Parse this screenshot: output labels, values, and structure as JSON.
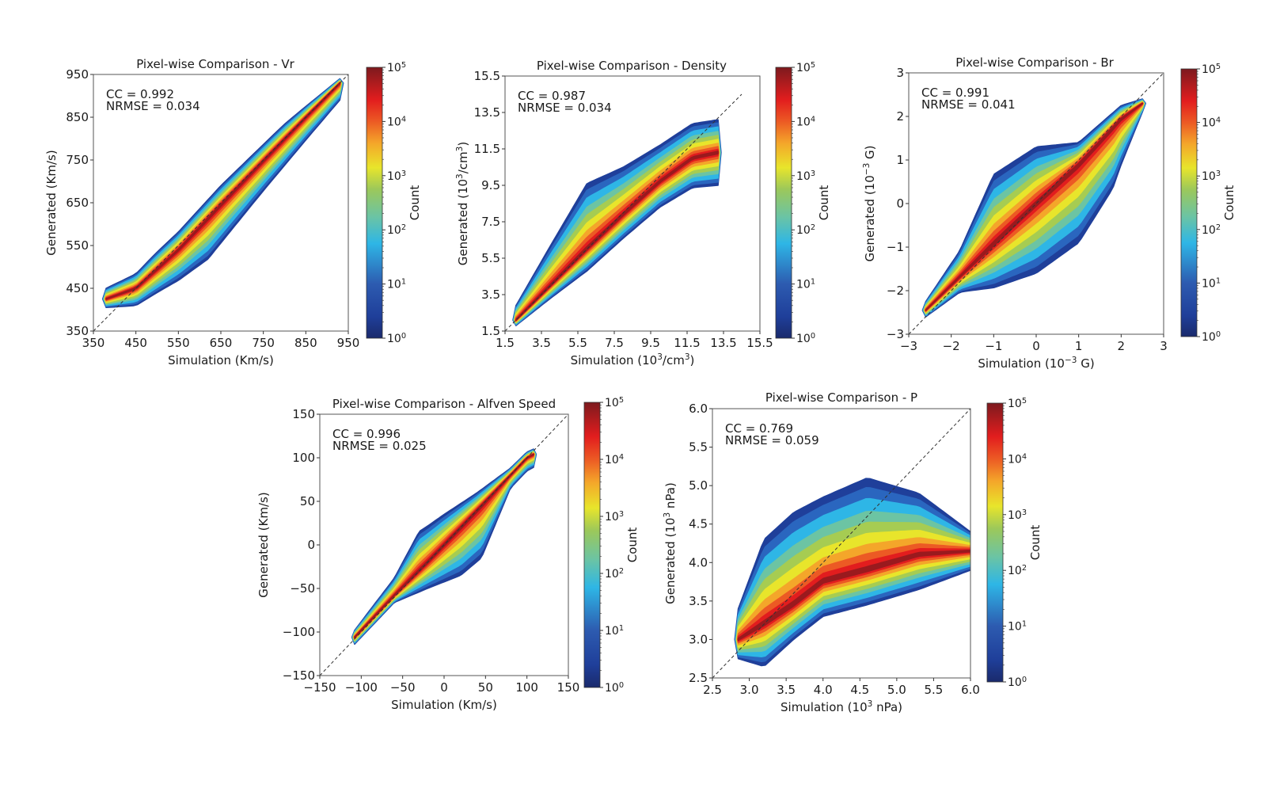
{
  "chart_data": [
    {
      "type": "heatmap",
      "subtype": "2d-histogram-density-scatter",
      "title": "Pixel-wise Comparison - Vr",
      "xlabel": "Simulation (Km/s)",
      "ylabel": "Generated (Km/s)",
      "xlim": [
        350,
        950
      ],
      "ylim": [
        350,
        950
      ],
      "xticks": [
        "350",
        "450",
        "550",
        "650",
        "750",
        "850",
        "950"
      ],
      "yticks": [
        "350",
        "450",
        "550",
        "650",
        "750",
        "850",
        "950"
      ],
      "xtick_values": [
        350,
        450,
        550,
        650,
        750,
        850,
        950
      ],
      "ytick_values": [
        350,
        450,
        550,
        650,
        750,
        850,
        950
      ],
      "annotation": {
        "cc": "CC = 0.992",
        "nrmse": "NRMSE = 0.034"
      },
      "metrics": {
        "CC": 0.992,
        "NRMSE": 0.034
      },
      "identity_line": true,
      "colorbar": {
        "label": "Count",
        "scale": "log",
        "range": [
          1,
          100000
        ],
        "ticks": [
          "10^0",
          "10^1",
          "10^2",
          "10^3",
          "10^4",
          "10^5"
        ]
      },
      "ridge": [
        [
          380,
          425
        ],
        [
          450,
          450
        ],
        [
          550,
          540
        ],
        [
          650,
          645
        ],
        [
          750,
          748
        ],
        [
          850,
          850
        ],
        [
          930,
          930
        ]
      ],
      "spread_above": [
        [
          380,
          25
        ],
        [
          500,
          40
        ],
        [
          650,
          45
        ],
        [
          800,
          35
        ],
        [
          930,
          10
        ]
      ],
      "spread_below": [
        [
          380,
          20
        ],
        [
          500,
          55
        ],
        [
          620,
          95
        ],
        [
          750,
          70
        ],
        [
          930,
          40
        ]
      ]
    },
    {
      "type": "heatmap",
      "subtype": "2d-histogram-density-scatter",
      "title": "Pixel-wise Comparison - Density",
      "xlabel": "Simulation (10^3/cm^3)",
      "ylabel": "Generated (10^3/cm^3)",
      "xlim": [
        1.5,
        15.5
      ],
      "ylim": [
        1.5,
        15.5
      ],
      "xticks": [
        "1.5",
        "3.5",
        "5.5",
        "7.5",
        "9.5",
        "11.5",
        "13.5",
        "15.5"
      ],
      "yticks": [
        "1.5",
        "3.5",
        "5.5",
        "7.5",
        "9.5",
        "11.5",
        "13.5",
        "15.5"
      ],
      "xtick_values": [
        1.5,
        3.5,
        5.5,
        7.5,
        9.5,
        11.5,
        13.5,
        15.5
      ],
      "ytick_values": [
        1.5,
        3.5,
        5.5,
        7.5,
        9.5,
        11.5,
        13.5,
        15.5
      ],
      "annotation": {
        "cc": "CC = 0.987",
        "nrmse": "NRMSE = 0.034"
      },
      "metrics": {
        "CC": 0.987,
        "NRMSE": 0.034
      },
      "identity_line": true,
      "colorbar": {
        "label": "Count",
        "scale": "log",
        "range": [
          1,
          100000
        ],
        "ticks": [
          "10^0",
          "10^1",
          "10^2",
          "10^3",
          "10^4",
          "10^5"
        ]
      },
      "ridge": [
        [
          2.1,
          2.1
        ],
        [
          4,
          4
        ],
        [
          6,
          6
        ],
        [
          8,
          7.9
        ],
        [
          10,
          9.7
        ],
        [
          11.8,
          11.0
        ],
        [
          13.2,
          11.3
        ]
      ],
      "spread_above": [
        [
          2.1,
          0.8
        ],
        [
          4,
          2.2
        ],
        [
          6,
          3.6
        ],
        [
          8,
          2.6
        ],
        [
          10,
          2.0
        ],
        [
          13.2,
          1.8
        ]
      ],
      "spread_below": [
        [
          2.1,
          0.3
        ],
        [
          4,
          0.7
        ],
        [
          6,
          1.2
        ],
        [
          8,
          1.3
        ],
        [
          10,
          1.4
        ],
        [
          13.2,
          1.8
        ]
      ]
    },
    {
      "type": "heatmap",
      "subtype": "2d-histogram-density-scatter",
      "title": "Pixel-wise Comparison - Br",
      "xlabel": "Simulation (10^-3 G)",
      "ylabel": "Generated (10^-3 G)",
      "xlim": [
        -3,
        3
      ],
      "ylim": [
        -3,
        3
      ],
      "xticks": [
        "−3",
        "−2",
        "−1",
        "0",
        "1",
        "2",
        "3"
      ],
      "yticks": [
        "−3",
        "−2",
        "−1",
        "0",
        "1",
        "2",
        "3"
      ],
      "xtick_values": [
        -3,
        -2,
        -1,
        0,
        1,
        2,
        3
      ],
      "ytick_values": [
        -3,
        -2,
        -1,
        0,
        1,
        2,
        3
      ],
      "annotation": {
        "cc": "CC = 0.991",
        "nrmse": "NRMSE = 0.041"
      },
      "metrics": {
        "CC": 0.991,
        "NRMSE": 0.041
      },
      "identity_line": true,
      "colorbar": {
        "label": "Count",
        "scale": "log",
        "range": [
          1,
          100000
        ],
        "ticks": [
          "10^0",
          "10^1",
          "10^2",
          "10^3",
          "10^4",
          "10^5"
        ]
      },
      "ridge": [
        [
          -2.6,
          -2.45
        ],
        [
          -1.5,
          -1.4
        ],
        [
          0,
          0
        ],
        [
          1,
          0.9
        ],
        [
          2,
          1.95
        ],
        [
          2.5,
          2.3
        ]
      ],
      "spread_above": [
        [
          -2.6,
          0.2
        ],
        [
          -1.8,
          0.6
        ],
        [
          -1,
          1.6
        ],
        [
          0,
          1.3
        ],
        [
          1,
          0.5
        ],
        [
          2,
          0.3
        ],
        [
          2.5,
          0.1
        ]
      ],
      "spread_below": [
        [
          -2.6,
          0.15
        ],
        [
          -1.8,
          0.35
        ],
        [
          -1,
          1.0
        ],
        [
          0,
          1.6
        ],
        [
          1,
          1.8
        ],
        [
          1.8,
          1.4
        ],
        [
          2.5,
          0.2
        ]
      ]
    },
    {
      "type": "heatmap",
      "subtype": "2d-histogram-density-scatter",
      "title": "Pixel-wise Comparison - Alfven Speed",
      "xlabel": "Simulation (Km/s)",
      "ylabel": "Generated (Km/s)",
      "xlim": [
        -150,
        150
      ],
      "ylim": [
        -150,
        150
      ],
      "xticks": [
        "−150",
        "−100",
        "−50",
        "0",
        "50",
        "100",
        "150"
      ],
      "yticks": [
        "−150",
        "−100",
        "−50",
        "0",
        "50",
        "100",
        "150"
      ],
      "xtick_values": [
        -150,
        -100,
        -50,
        0,
        50,
        100,
        150
      ],
      "ytick_values": [
        -150,
        -100,
        -50,
        0,
        50,
        100,
        150
      ],
      "annotation": {
        "cc": "CC = 0.996",
        "nrmse": "NRMSE = 0.025"
      },
      "metrics": {
        "CC": 0.996,
        "NRMSE": 0.025
      },
      "identity_line": true,
      "colorbar": {
        "label": "Count",
        "scale": "log",
        "range": [
          1,
          100000
        ],
        "ticks": [
          "10^0",
          "10^1",
          "10^2",
          "10^3",
          "10^4",
          "10^5"
        ]
      },
      "ridge": [
        [
          -108,
          -106
        ],
        [
          -60,
          -58
        ],
        [
          -20,
          -20
        ],
        [
          20,
          20
        ],
        [
          60,
          60
        ],
        [
          100,
          100
        ],
        [
          108,
          104
        ]
      ],
      "spread_above": [
        [
          -108,
          8
        ],
        [
          -60,
          20
        ],
        [
          -30,
          45
        ],
        [
          0,
          35
        ],
        [
          40,
          20
        ],
        [
          80,
          8
        ],
        [
          108,
          6
        ]
      ],
      "spread_below": [
        [
          -108,
          8
        ],
        [
          -60,
          8
        ],
        [
          -20,
          30
        ],
        [
          20,
          55
        ],
        [
          45,
          60
        ],
        [
          80,
          15
        ],
        [
          108,
          15
        ]
      ]
    },
    {
      "type": "heatmap",
      "subtype": "2d-histogram-density-scatter",
      "title": "Pixel-wise Comparison - P",
      "xlabel": "Simulation (10^3 nPa)",
      "ylabel": "Generated (10^3 nPa)",
      "xlim": [
        2.5,
        6.0
      ],
      "ylim": [
        2.5,
        6.0
      ],
      "xticks": [
        "2.5",
        "3.0",
        "3.5",
        "4.0",
        "4.5",
        "5.0",
        "5.5",
        "6.0"
      ],
      "yticks": [
        "2.5",
        "3.0",
        "3.5",
        "4.0",
        "4.5",
        "5.0",
        "5.5",
        "6.0"
      ],
      "xtick_values": [
        2.5,
        3.0,
        3.5,
        4.0,
        4.5,
        5.0,
        5.5,
        6.0
      ],
      "ytick_values": [
        2.5,
        3.0,
        3.5,
        4.0,
        4.5,
        5.0,
        5.5,
        6.0
      ],
      "annotation": {
        "cc": "CC = 0.769",
        "nrmse": "NRMSE = 0.059"
      },
      "metrics": {
        "CC": 0.769,
        "NRMSE": 0.059
      },
      "identity_line": true,
      "colorbar": {
        "label": "Count",
        "scale": "log",
        "range": [
          1,
          100000
        ],
        "ticks": [
          "10^0",
          "10^1",
          "10^2",
          "10^3",
          "10^4",
          "10^5"
        ]
      },
      "ridge": [
        [
          2.85,
          3.0
        ],
        [
          3.2,
          3.2
        ],
        [
          3.6,
          3.45
        ],
        [
          4.0,
          3.75
        ],
        [
          4.6,
          3.9
        ],
        [
          5.3,
          4.1
        ],
        [
          6.0,
          4.15
        ]
      ],
      "spread_above": [
        [
          2.85,
          0.4
        ],
        [
          3.2,
          1.1
        ],
        [
          3.6,
          1.2
        ],
        [
          4.0,
          1.1
        ],
        [
          4.6,
          1.2
        ],
        [
          5.3,
          0.8
        ],
        [
          6.0,
          0.25
        ]
      ],
      "spread_below": [
        [
          2.85,
          0.25
        ],
        [
          3.2,
          0.55
        ],
        [
          3.6,
          0.45
        ],
        [
          4.0,
          0.45
        ],
        [
          4.6,
          0.45
        ],
        [
          5.3,
          0.45
        ],
        [
          6.0,
          0.25
        ]
      ]
    }
  ]
}
